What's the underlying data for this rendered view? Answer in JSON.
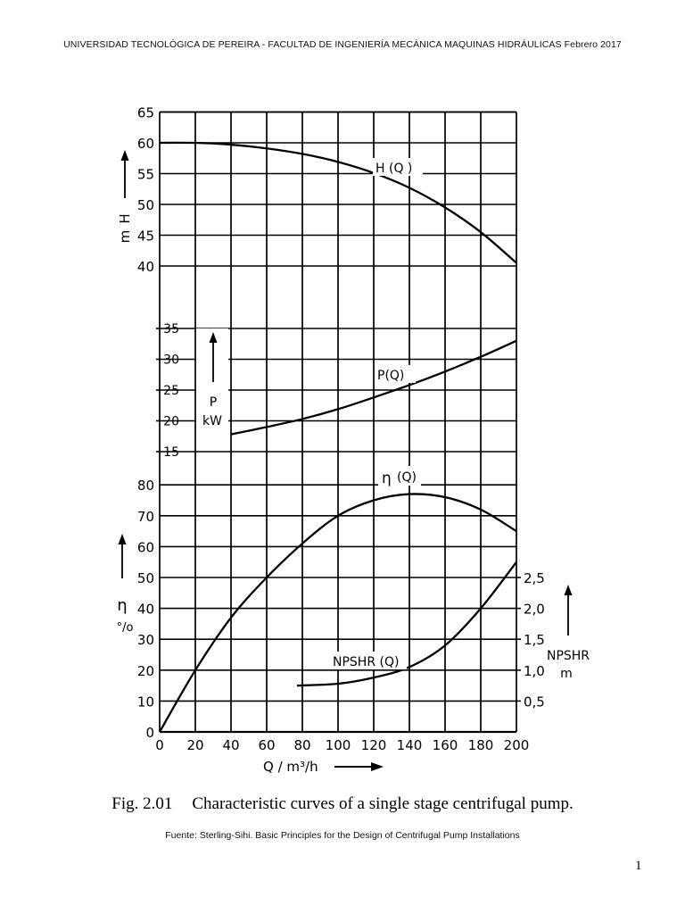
{
  "header": "UNIVERSIDAD TECNOLÓGICA DE PEREIRA - FACULTAD DE INGENIERÍA MECÁNICA MAQUINAS HIDRÁULICAS   Febrero 2017",
  "caption": {
    "fig": "Fig. 2.01",
    "text": "Characteristic curves of a single stage centrifugal pump."
  },
  "source": "Fuente: Sterling-Sihi. Basic Principles for the Design of Centrifugal Pump Installations",
  "page_number": "1",
  "chart_data": [
    {
      "type": "line",
      "title": "",
      "xlabel": "Q / m³/h",
      "ylabel": "H m",
      "xlim": [
        0,
        200
      ],
      "ylim": [
        40,
        65
      ],
      "yticks": [
        40,
        45,
        50,
        55,
        60,
        65
      ],
      "xticks": [
        0,
        20,
        40,
        60,
        80,
        100,
        120,
        140,
        160,
        180,
        200
      ],
      "grid": true,
      "series": [
        {
          "name": "H (Q)",
          "x": [
            0,
            20,
            40,
            60,
            80,
            100,
            120,
            140,
            160,
            180,
            200
          ],
          "y": [
            60,
            60,
            59.7,
            59.1,
            58.2,
            56.9,
            55.1,
            52.7,
            49.5,
            45.5,
            40.5
          ]
        }
      ]
    },
    {
      "type": "line",
      "title": "",
      "xlabel": "Q / m³/h",
      "ylabel": "P kW",
      "xlim": [
        0,
        200
      ],
      "ylim": [
        15,
        35
      ],
      "yticks": [
        15,
        20,
        25,
        30,
        35
      ],
      "grid": true,
      "series": [
        {
          "name": "P(Q)",
          "x": [
            40,
            60,
            80,
            100,
            120,
            140,
            160,
            180,
            200
          ],
          "y": [
            17.8,
            19,
            20.3,
            21.9,
            23.8,
            25.8,
            28,
            30.4,
            33
          ]
        }
      ]
    },
    {
      "type": "line",
      "title": "",
      "xlabel": "Q / m³/h",
      "ylabel": "η %",
      "y2label": "NPSHR m",
      "xlim": [
        0,
        200
      ],
      "ylim": [
        0,
        80
      ],
      "yticks": [
        0,
        10,
        20,
        30,
        40,
        50,
        60,
        70,
        80
      ],
      "y2lim": [
        0,
        3.0
      ],
      "y2ticks": [
        "0,5",
        "1,0",
        "1,5",
        "2,0",
        "2,5"
      ],
      "grid": true,
      "series": [
        {
          "name": "η (Q)",
          "axis": "left",
          "x": [
            0,
            20,
            40,
            60,
            80,
            100,
            120,
            140,
            160,
            180,
            200
          ],
          "y": [
            0,
            20,
            37,
            50,
            61,
            70,
            75,
            77,
            76,
            72,
            65
          ]
        },
        {
          "name": "NPSHR (Q)",
          "axis": "right",
          "x": [
            77,
            100,
            120,
            140,
            160,
            180,
            200
          ],
          "y": [
            0.75,
            0.78,
            0.88,
            1.05,
            1.4,
            2.0,
            2.75
          ]
        }
      ]
    }
  ],
  "labels": {
    "h_curve": "H (Q )",
    "p_curve": "P(Q)",
    "eta_curve": "(Q)",
    "npshr_curve": "NPSHR (Q)",
    "h_axis": [
      "H",
      "m"
    ],
    "p_axis": [
      "P",
      "kW"
    ],
    "eta_axis": [
      "η",
      "%"
    ],
    "npshr_axis": [
      "NPSHR",
      "m"
    ],
    "x_axis": "Q / m³/h"
  }
}
